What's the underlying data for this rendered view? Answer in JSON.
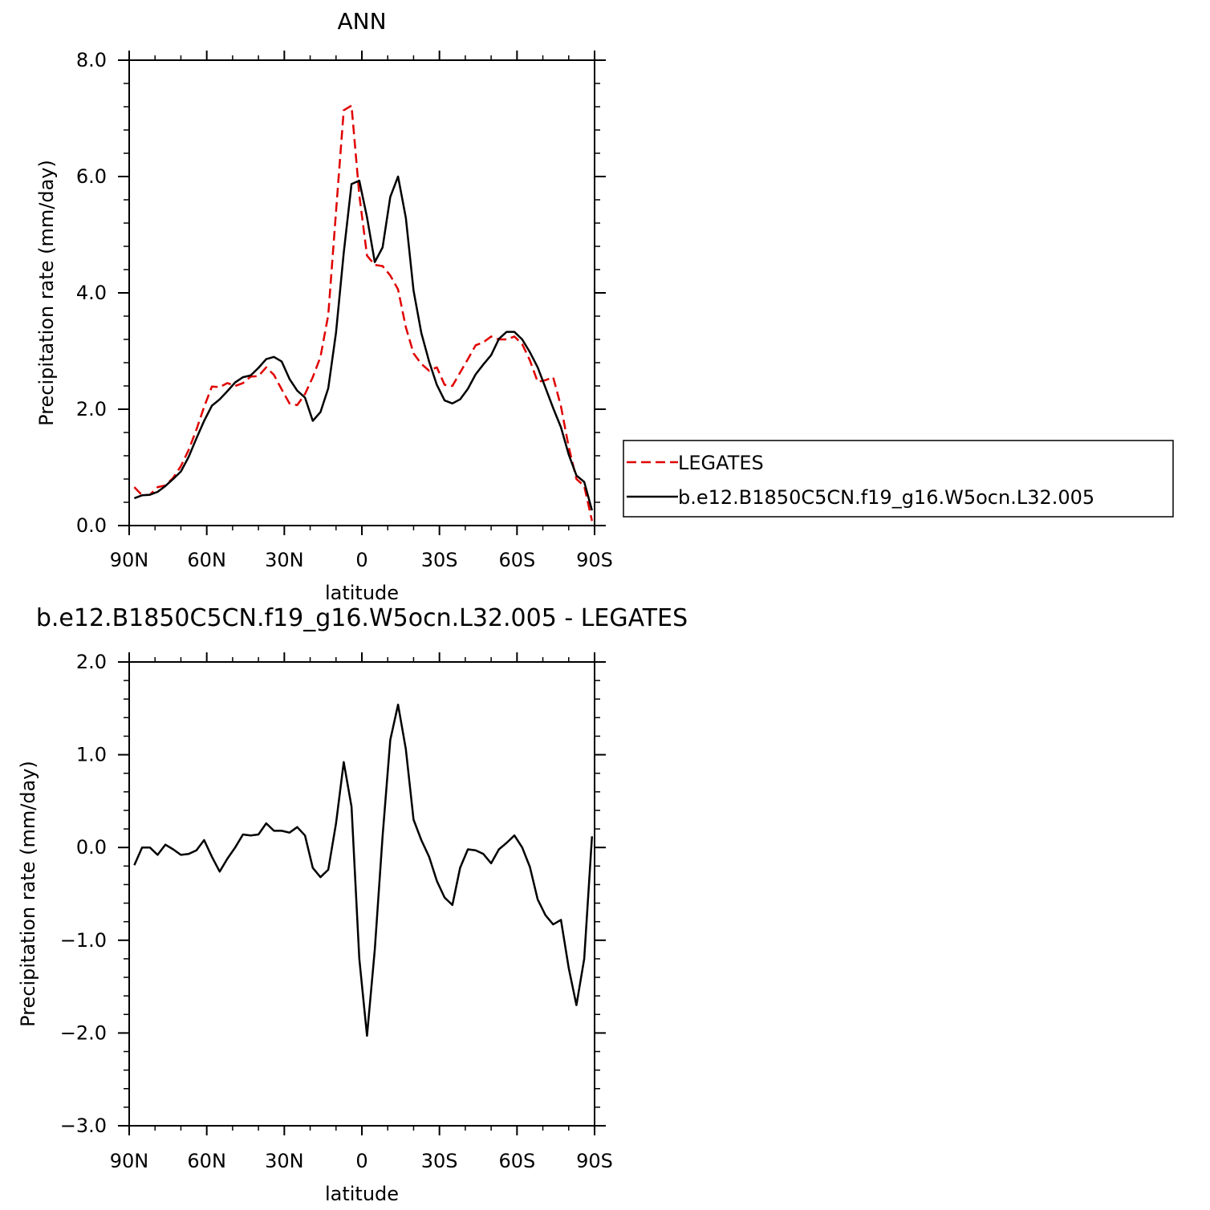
{
  "chart_data": [
    {
      "type": "line",
      "title": "ANN",
      "xlabel": "latitude",
      "ylabel": "Precipitation rate (mm/day)",
      "xlim": [
        90,
        -90
      ],
      "ylim": [
        0,
        8
      ],
      "xticks": [
        90,
        60,
        30,
        0,
        -30,
        -60,
        -90
      ],
      "xtick_labels": [
        "90N",
        "60N",
        "30N",
        "0",
        "30S",
        "60S",
        "90S"
      ],
      "yticks": [
        0,
        2,
        4,
        6,
        8
      ],
      "ytick_labels": [
        "0.0",
        "2.0",
        "4.0",
        "6.0",
        "8.0"
      ],
      "legend": {
        "placement": "right"
      },
      "series": [
        {
          "name": "LEGATES",
          "color": "#e00000",
          "dash": true,
          "x": [
            88,
            85,
            82,
            79,
            76,
            73,
            70,
            67,
            64,
            61,
            58,
            55,
            52,
            49,
            46,
            43,
            40,
            37,
            34,
            31,
            28,
            25,
            22,
            19,
            16,
            13,
            10,
            7,
            4,
            1,
            -2,
            -5,
            -8,
            -11,
            -14,
            -17,
            -20,
            -23,
            -26,
            -29,
            -32,
            -35,
            -38,
            -41,
            -44,
            -47,
            -50,
            -53,
            -56,
            -59,
            -62,
            -65,
            -68,
            -71,
            -74,
            -77,
            -80,
            -83,
            -86,
            -89
          ],
          "values": [
            0.66,
            0.52,
            0.53,
            0.66,
            0.69,
            0.82,
            1.02,
            1.3,
            1.65,
            2.04,
            2.39,
            2.38,
            2.45,
            2.4,
            2.45,
            2.56,
            2.57,
            2.72,
            2.59,
            2.34,
            2.1,
            2.07,
            2.26,
            2.55,
            2.9,
            3.62,
            5.4,
            7.14,
            7.22,
            5.68,
            4.64,
            4.48,
            4.46,
            4.3,
            4.06,
            3.41,
            2.96,
            2.78,
            2.66,
            2.72,
            2.42,
            2.4,
            2.63,
            2.86,
            3.1,
            3.15,
            3.25,
            3.2,
            3.2,
            3.25,
            3.12,
            2.84,
            2.47,
            2.5,
            2.55,
            2.05,
            1.35,
            0.8,
            0.68,
            0.08
          ]
        },
        {
          "name": "b.e12.B1850C5CN.f19_g16.W5ocn.L32.005",
          "color": "#000000",
          "dash": false,
          "x": [
            88,
            85,
            82,
            79,
            76,
            73,
            70,
            67,
            64,
            61,
            58,
            55,
            52,
            49,
            46,
            43,
            40,
            37,
            34,
            31,
            28,
            25,
            22,
            19,
            16,
            13,
            10,
            7,
            4,
            1,
            -2,
            -5,
            -8,
            -11,
            -14,
            -17,
            -20,
            -23,
            -26,
            -29,
            -32,
            -35,
            -38,
            -41,
            -44,
            -47,
            -50,
            -53,
            -56,
            -59,
            -62,
            -65,
            -68,
            -71,
            -74,
            -77,
            -80,
            -83,
            -86,
            -89
          ],
          "values": [
            0.47,
            0.52,
            0.53,
            0.58,
            0.68,
            0.8,
            0.93,
            1.18,
            1.5,
            1.8,
            2.06,
            2.17,
            2.31,
            2.46,
            2.55,
            2.58,
            2.71,
            2.86,
            2.9,
            2.82,
            2.52,
            2.32,
            2.2,
            1.8,
            1.95,
            2.36,
            3.32,
            4.69,
            5.87,
            5.93,
            5.3,
            4.53,
            4.78,
            5.65,
            6.0,
            5.29,
            4.04,
            3.31,
            2.82,
            2.42,
            2.15,
            2.1,
            2.17,
            2.35,
            2.6,
            2.77,
            2.93,
            3.21,
            3.33,
            3.33,
            3.2,
            2.98,
            2.72,
            2.37,
            2.02,
            1.69,
            1.22,
            0.86,
            0.75,
            0.26
          ]
        }
      ]
    },
    {
      "type": "line",
      "title": "b.e12.B1850C5CN.f19_g16.W5ocn.L32.005 - LEGATES",
      "xlabel": "latitude",
      "ylabel": "Precipitation rate (mm/day)",
      "xlim": [
        90,
        -90
      ],
      "ylim": [
        -3,
        2
      ],
      "xticks": [
        90,
        60,
        30,
        0,
        -30,
        -60,
        -90
      ],
      "xtick_labels": [
        "90N",
        "60N",
        "30N",
        "0",
        "30S",
        "60S",
        "90S"
      ],
      "yticks": [
        -3,
        -2,
        -1,
        0,
        1,
        2
      ],
      "ytick_labels": [
        "-3.0",
        "-2.0",
        "-1.0",
        "0.0",
        "1.0",
        "2.0"
      ],
      "series": [
        {
          "color": "#000000",
          "dash": false,
          "x": [
            88,
            85,
            82,
            79,
            76,
            73,
            70,
            67,
            64,
            61,
            58,
            55,
            52,
            49,
            46,
            43,
            40,
            37,
            34,
            31,
            28,
            25,
            22,
            19,
            16,
            13,
            10,
            7,
            4,
            1,
            -2,
            -5,
            -8,
            -11,
            -14,
            -17,
            -20,
            -23,
            -26,
            -29,
            -32,
            -35,
            -38,
            -41,
            -44,
            -47,
            -50,
            -53,
            -56,
            -59,
            -62,
            -65,
            -68,
            -71,
            -74,
            -77,
            -80,
            -83,
            -86,
            -89
          ],
          "values": [
            -0.19,
            0.0,
            0.0,
            -0.08,
            0.03,
            -0.02,
            -0.08,
            -0.07,
            -0.03,
            0.08,
            -0.1,
            -0.26,
            -0.12,
            0.0,
            0.14,
            0.13,
            0.14,
            0.26,
            0.18,
            0.18,
            0.16,
            0.22,
            0.13,
            -0.22,
            -0.32,
            -0.24,
            0.26,
            0.92,
            0.44,
            -1.2,
            -2.03,
            -1.1,
            0.12,
            1.16,
            1.54,
            1.06,
            0.3,
            0.08,
            -0.1,
            -0.36,
            -0.54,
            -0.62,
            -0.22,
            -0.02,
            -0.03,
            -0.07,
            -0.17,
            -0.02,
            0.05,
            0.13,
            0.0,
            -0.21,
            -0.56,
            -0.73,
            -0.83,
            -0.78,
            -1.3,
            -1.7,
            -1.2,
            0.12
          ]
        }
      ]
    }
  ]
}
